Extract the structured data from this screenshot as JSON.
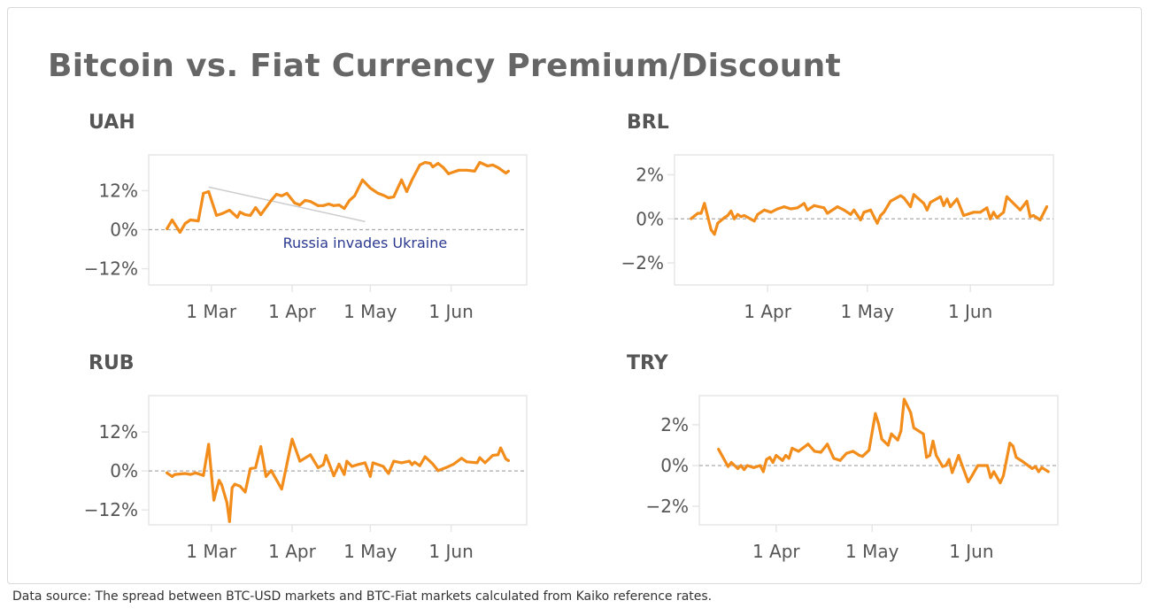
{
  "title": "Bitcoin vs. Fiat Currency Premium/Discount",
  "footer": "Data source: The spread between BTC-USD markets and BTC-Fiat markets calculated from Kaiko reference rates.",
  "colors": {
    "line": "#F28C1B",
    "zero_line": "#aaaaaa",
    "annotation_text": "#2B3990",
    "annotation_line": "#cccccc",
    "axis_text": "#555555",
    "panel_title": "#555555"
  },
  "chart_data": [
    {
      "type": "line",
      "title": "UAH",
      "xlim": [
        "02-05",
        "06-30"
      ],
      "ylim": [
        -17,
        23
      ],
      "grid": false,
      "zero_line": true,
      "x_ticks": [
        {
          "date": "03-01",
          "label": "1 Mar"
        },
        {
          "date": "04-01",
          "label": "1 Apr"
        },
        {
          "date": "05-01",
          "label": "1 May"
        },
        {
          "date": "06-01",
          "label": "1 Jun"
        }
      ],
      "y_ticks": [
        {
          "value": 12,
          "label": "12%"
        },
        {
          "value": 0,
          "label": "0%"
        },
        {
          "value": -12,
          "label": "−12%"
        }
      ],
      "x": [
        "02-12",
        "02-14",
        "02-17",
        "02-19",
        "02-21",
        "02-24",
        "02-26",
        "02-28",
        "03-03",
        "03-05",
        "03-08",
        "03-11",
        "03-12",
        "03-14",
        "03-16",
        "03-18",
        "03-20",
        "03-24",
        "03-26",
        "03-28",
        "03-30",
        "04-02",
        "04-04",
        "04-06",
        "04-08",
        "04-11",
        "04-13",
        "04-15",
        "04-17",
        "04-19",
        "04-21",
        "04-23",
        "04-25",
        "04-28",
        "05-01",
        "05-04",
        "05-06",
        "05-08",
        "05-10",
        "05-13",
        "05-15",
        "05-17",
        "05-20",
        "05-22",
        "05-24",
        "05-25",
        "05-27",
        "05-29",
        "05-31",
        "06-04",
        "06-07",
        "06-10",
        "06-12",
        "06-15",
        "06-17",
        "06-19",
        "06-22",
        "06-23"
      ],
      "values": [
        0.3,
        3,
        -0.8,
        1.9,
        3,
        2.7,
        11.2,
        11.7,
        4.4,
        4.9,
        6,
        3.8,
        5.4,
        4.6,
        4.4,
        6.8,
        4.6,
        9,
        10.9,
        10.4,
        11.2,
        8.2,
        7.6,
        9,
        8.7,
        7.4,
        7.4,
        7.9,
        7.4,
        7.6,
        6.5,
        9,
        10.4,
        15.3,
        12.8,
        11.2,
        10.6,
        9.8,
        10.1,
        15.3,
        11.7,
        15.3,
        19.9,
        20.7,
        20.4,
        19.3,
        20.4,
        19.1,
        17.2,
        18.3,
        18.3,
        18,
        20.7,
        19.6,
        19.9,
        19.1,
        17.4,
        18
      ],
      "annotation": {
        "text": "Russia invades Ukraine",
        "text_at": {
          "date": "04-29",
          "value": -4
        },
        "line_from": {
          "date": "02-28",
          "value": 13.1
        },
        "line_to": {
          "date": "04-29",
          "value": 2.5
        }
      }
    },
    {
      "type": "line",
      "title": "BRL",
      "xlim": [
        "03-04",
        "06-26"
      ],
      "ylim": [
        -3,
        2.9
      ],
      "grid": false,
      "zero_line": true,
      "x_ticks": [
        {
          "date": "04-01",
          "label": "1 Apr"
        },
        {
          "date": "05-01",
          "label": "1 May"
        },
        {
          "date": "06-01",
          "label": "1 Jun"
        }
      ],
      "y_ticks": [
        {
          "value": 2,
          "label": "2%"
        },
        {
          "value": 0,
          "label": "0%"
        },
        {
          "value": -2,
          "label": "−2%"
        }
      ],
      "x": [
        "03-09",
        "03-11",
        "03-12",
        "03-13",
        "03-15",
        "03-16",
        "03-17",
        "03-19",
        "03-20",
        "03-21",
        "03-22",
        "03-23",
        "03-24",
        "03-25",
        "03-28",
        "03-29",
        "03-31",
        "04-02",
        "04-04",
        "04-06",
        "04-08",
        "04-10",
        "04-12",
        "04-13",
        "04-15",
        "04-18",
        "04-19",
        "04-22",
        "04-24",
        "04-26",
        "04-27",
        "04-29",
        "04-30",
        "05-02",
        "05-04",
        "05-05",
        "05-06",
        "05-08",
        "05-11",
        "05-12",
        "05-14",
        "05-15",
        "05-18",
        "05-19",
        "05-20",
        "05-23",
        "05-24",
        "05-25",
        "05-26",
        "05-28",
        "05-30",
        "06-02",
        "06-04",
        "06-06",
        "06-07",
        "06-08",
        "06-09",
        "06-11",
        "06-12",
        "06-16",
        "06-18",
        "06-19",
        "06-20",
        "06-22",
        "06-24"
      ],
      "values": [
        0.01,
        0.25,
        0.25,
        0.7,
        -0.5,
        -0.7,
        -0.2,
        0.05,
        0.15,
        0.35,
        0,
        0.2,
        0.1,
        0.15,
        -0.1,
        0.2,
        0.4,
        0.3,
        0.45,
        0.55,
        0.45,
        0.5,
        0.7,
        0.4,
        0.6,
        0.5,
        0.25,
        0.55,
        0.4,
        0.2,
        0.4,
        -0.05,
        0.3,
        0.4,
        -0.2,
        0.15,
        0.3,
        0.8,
        1.05,
        0.95,
        0.55,
        1.1,
        0.7,
        0.4,
        0.75,
        1,
        0.6,
        0.9,
        0.55,
        0.9,
        0.15,
        0.3,
        0.3,
        0.5,
        0,
        0.3,
        0.05,
        0.3,
        1,
        0.4,
        0.8,
        0.1,
        0.15,
        -0.05,
        0.55
      ]
    },
    {
      "type": "line",
      "title": "RUB",
      "xlim": [
        "02-05",
        "06-30"
      ],
      "ylim": [
        -16.6,
        23.2
      ],
      "grid": false,
      "zero_line": true,
      "x_ticks": [
        {
          "date": "03-01",
          "label": "1 Mar"
        },
        {
          "date": "04-01",
          "label": "1 Apr"
        },
        {
          "date": "05-01",
          "label": "1 May"
        },
        {
          "date": "06-01",
          "label": "1 Jun"
        }
      ],
      "y_ticks": [
        {
          "value": 12,
          "label": "12%"
        },
        {
          "value": 0,
          "label": "0%"
        },
        {
          "value": -12,
          "label": "−12%"
        }
      ],
      "x": [
        "02-12",
        "02-14",
        "02-15",
        "02-19",
        "02-21",
        "02-23",
        "02-26",
        "02-28",
        "03-02",
        "03-04",
        "03-05",
        "03-07",
        "03-08",
        "03-09",
        "03-10",
        "03-12",
        "03-14",
        "03-16",
        "03-18",
        "03-20",
        "03-22",
        "03-24",
        "03-28",
        "03-30",
        "04-01",
        "04-04",
        "04-08",
        "04-11",
        "04-13",
        "04-14",
        "04-17",
        "04-19",
        "04-21",
        "04-22",
        "04-24",
        "04-26",
        "04-29",
        "05-01",
        "05-02",
        "05-06",
        "05-08",
        "05-10",
        "05-13",
        "05-16",
        "05-17",
        "05-18",
        "05-20",
        "05-22",
        "05-25",
        "05-27",
        "05-30",
        "06-02",
        "06-05",
        "06-07",
        "06-11",
        "06-12",
        "06-14",
        "06-17",
        "06-19",
        "06-20",
        "06-22",
        "06-23"
      ],
      "values": [
        -0.6,
        -1.7,
        -1.1,
        -0.8,
        -1.1,
        -0.6,
        -1.4,
        8.2,
        -9,
        -2.9,
        -4.3,
        -9.7,
        -15.6,
        -5.2,
        -4.1,
        -4.7,
        -6.5,
        0.7,
        1,
        7.5,
        -1.7,
        0.1,
        -5.6,
        2.1,
        9.8,
        3,
        5,
        1,
        1.9,
        4.8,
        -1.5,
        2.1,
        -1.1,
        3,
        1.4,
        1.9,
        2.5,
        -1.7,
        2.5,
        1.4,
        -0.8,
        3,
        2.5,
        3,
        1.9,
        2.7,
        1.6,
        4.4,
        2.1,
        0.1,
        1,
        2.1,
        3.9,
        2.8,
        2.5,
        4.1,
        2.5,
        4.8,
        5,
        7.1,
        3.7,
        3.2
      ]
    },
    {
      "type": "line",
      "title": "TRY",
      "xlim": [
        "03-08",
        "06-28"
      ],
      "ylim": [
        -2.91,
        3.43
      ],
      "grid": false,
      "zero_line": true,
      "x_ticks": [
        {
          "date": "04-01",
          "label": "1 Apr"
        },
        {
          "date": "05-01",
          "label": "1 May"
        },
        {
          "date": "06-01",
          "label": "1 Jun"
        }
      ],
      "y_ticks": [
        {
          "value": 2,
          "label": "2%"
        },
        {
          "value": 0,
          "label": "0%"
        },
        {
          "value": -2,
          "label": "−2%"
        }
      ],
      "x": [
        "03-14",
        "03-17",
        "03-18",
        "03-20",
        "03-21",
        "03-22",
        "03-23",
        "03-25",
        "03-27",
        "03-28",
        "03-29",
        "03-30",
        "03-31",
        "04-01",
        "04-03",
        "04-04",
        "04-05",
        "04-06",
        "04-08",
        "04-11",
        "04-13",
        "04-15",
        "04-17",
        "04-19",
        "04-21",
        "04-23",
        "04-25",
        "04-27",
        "04-28",
        "04-30",
        "05-02",
        "05-03",
        "05-04",
        "05-06",
        "05-07",
        "05-09",
        "05-10",
        "05-11",
        "05-13",
        "05-14",
        "05-17",
        "05-18",
        "05-19",
        "05-20",
        "05-21",
        "05-23",
        "05-24",
        "05-25",
        "05-26",
        "05-28",
        "05-29",
        "05-31",
        "06-01",
        "06-03",
        "06-06",
        "06-07",
        "06-08",
        "06-10",
        "06-11",
        "06-13",
        "06-14",
        "06-15",
        "06-17",
        "06-20",
        "06-21",
        "06-22",
        "06-23",
        "06-25"
      ],
      "values": [
        0.8,
        -0.05,
        0.15,
        -0.15,
        0,
        -0.2,
        0,
        -0.1,
        0,
        -0.3,
        0.3,
        0.4,
        0.15,
        0.5,
        0.25,
        0.5,
        0.35,
        0.85,
        0.7,
        1.05,
        0.7,
        0.65,
        1.05,
        0.35,
        0.25,
        0.6,
        0.7,
        0.5,
        0.45,
        0.75,
        2.55,
        2.05,
        1.3,
        1,
        1.55,
        1.25,
        1.7,
        3.25,
        2.6,
        1.85,
        1.55,
        0.4,
        0.5,
        1.2,
        0.5,
        -0.05,
        0,
        0.3,
        -0.35,
        0.5,
        0.05,
        -0.8,
        -0.55,
        0,
        0,
        -0.6,
        -0.3,
        -0.85,
        -0.5,
        1.1,
        0.95,
        0.4,
        0.2,
        -0.15,
        -0.05,
        -0.3,
        -0.1,
        -0.3
      ]
    }
  ]
}
